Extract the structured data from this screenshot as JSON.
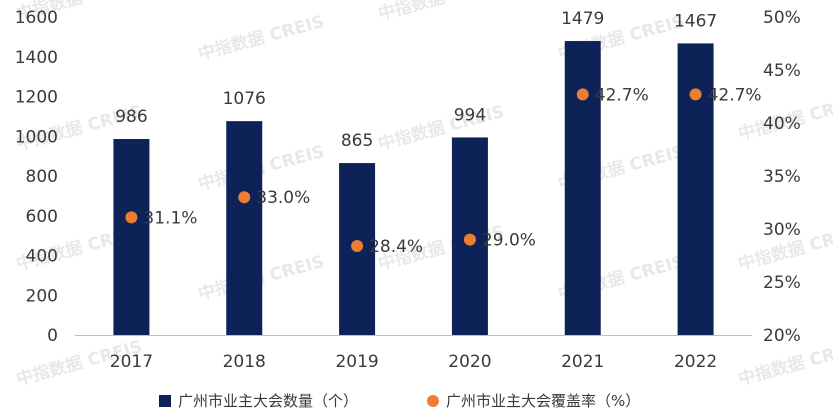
{
  "watermark": "中指数据 CREIS",
  "colors": {
    "bar": "#0d2257",
    "dot": "#ed7d31",
    "axis": "#bfbfbf",
    "text": "#3a3a3a"
  },
  "chart_data": {
    "type": "bar",
    "categories": [
      "2017",
      "2018",
      "2019",
      "2020",
      "2021",
      "2022"
    ],
    "series": [
      {
        "name": "广州市业主大会数量（个）",
        "type": "bar",
        "axis": "left",
        "values": [
          986,
          1076,
          865,
          994,
          1479,
          1467
        ],
        "labels": [
          "986",
          "1076",
          "865",
          "994",
          "1479",
          "1467"
        ]
      },
      {
        "name": "广州市业主大会覆盖率（%）",
        "type": "scatter",
        "axis": "right",
        "values": [
          31.1,
          33.0,
          28.4,
          29.0,
          42.7,
          42.7
        ],
        "labels": [
          "31.1%",
          "33.0%",
          "28.4%",
          "29.0%",
          "42.7%",
          "42.7%"
        ]
      }
    ],
    "y_left": {
      "ylim": [
        0,
        1600
      ],
      "ticks": [
        "0",
        "200",
        "400",
        "600",
        "800",
        "1000",
        "1200",
        "1400",
        "1600"
      ]
    },
    "y_right": {
      "ylim": [
        20,
        50
      ],
      "ticks": [
        "20%",
        "25%",
        "30%",
        "35%",
        "40%",
        "45%",
        "50%"
      ]
    },
    "legend_position": "bottom",
    "grid": false
  }
}
